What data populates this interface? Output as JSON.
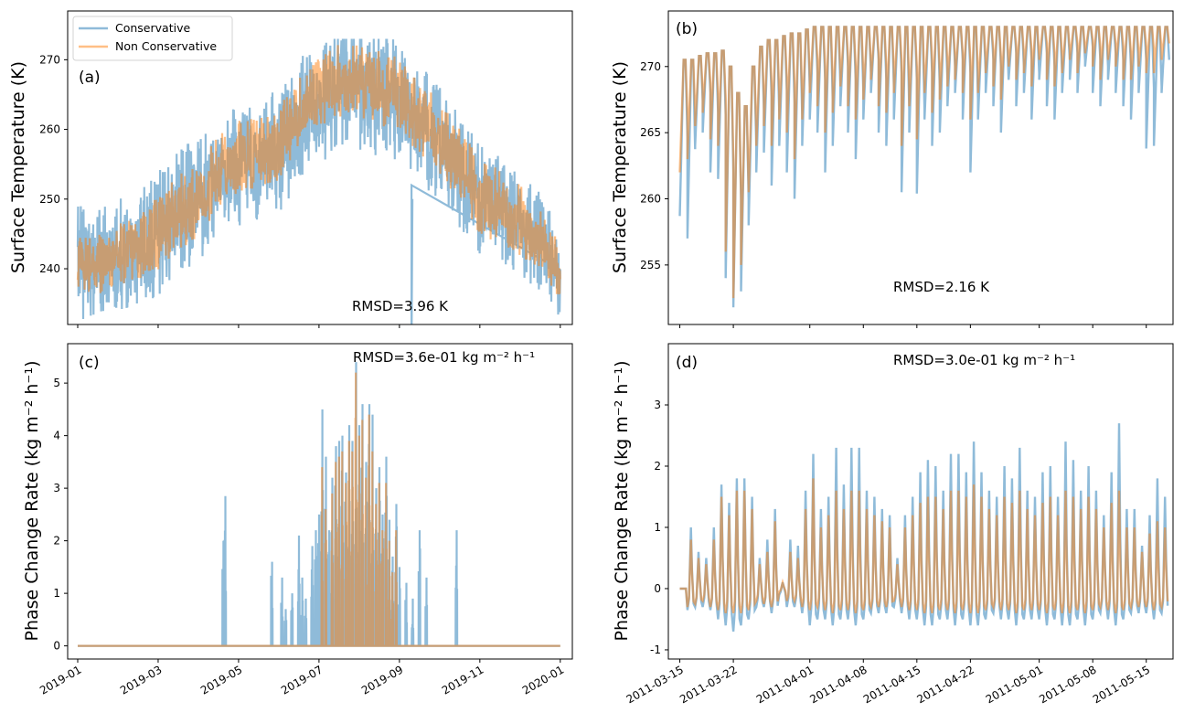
{
  "colors": {
    "conservative": "#1f77b4",
    "non_conservative": "#ff7f0e"
  },
  "chart_data": [
    {
      "type": "line",
      "panel_label": "(a)",
      "ylabel": "Surface Temperature (K)",
      "ylim": [
        232,
        277
      ],
      "yticks": [
        240,
        250,
        260,
        270
      ],
      "xtick_labels": [
        "2019-01",
        "2019-03",
        "2019-05",
        "2019-07",
        "2019-09",
        "2019-11",
        "2020-01"
      ],
      "xlim_months": [
        -0.25,
        12.3
      ],
      "annotation": "RMSD=3.96 K",
      "legend": [
        "Conservative",
        "Non Conservative"
      ],
      "series": [
        {
          "name": "Conservative",
          "x_months": [
            0,
            0.5,
            1,
            1.5,
            2,
            2.5,
            3,
            3.5,
            4,
            4.5,
            5,
            5.5,
            6,
            6.5,
            7,
            7.5,
            8,
            8.5,
            9,
            9.5,
            10,
            10.5,
            11,
            11.5,
            12
          ],
          "mean_K": [
            241,
            240.5,
            242,
            243,
            245,
            248,
            250,
            253,
            255,
            256,
            257,
            261,
            264,
            266,
            266,
            265,
            264,
            261,
            258,
            254,
            250,
            249,
            247,
            244,
            240
          ],
          "spread_K": [
            4.5,
            4.5,
            4.5,
            4.5,
            5,
            5,
            5,
            5,
            5,
            5,
            5,
            5,
            5,
            5,
            5,
            5,
            5,
            5,
            4.5,
            4.5,
            4.5,
            4.5,
            4.5,
            4,
            4
          ],
          "max_K": 273
        },
        {
          "name": "Non Conservative",
          "x_months": [
            0,
            0.5,
            1,
            1.5,
            2,
            2.5,
            3,
            3.5,
            4,
            4.5,
            5,
            5.5,
            6,
            6.5,
            7,
            7.5,
            8,
            8.5,
            9,
            9.5,
            10,
            10.5,
            11,
            11.5,
            12
          ],
          "mean_K": [
            241,
            240.5,
            242,
            243,
            245,
            248,
            250,
            254,
            256,
            257,
            258,
            262,
            265,
            267,
            267,
            266,
            265,
            262,
            259,
            255,
            250,
            249,
            247,
            244,
            240
          ],
          "spread_K": [
            2.5,
            2.5,
            2.5,
            2.5,
            3,
            3,
            3,
            3,
            3,
            3,
            3,
            3,
            3,
            3,
            3,
            3,
            3,
            3,
            3,
            3,
            3,
            3,
            3,
            2.5,
            2.5
          ],
          "max_K": 273
        }
      ]
    },
    {
      "type": "line",
      "panel_label": "(b)",
      "ylabel": "Surface Temperature (K)",
      "ylim": [
        250.5,
        274.2
      ],
      "yticks": [
        255,
        260,
        265,
        270
      ],
      "xtick_labels": [
        "2011-03-15",
        "2011-03-22",
        "2011-04-01",
        "2011-04-08",
        "2011-04-15",
        "2011-04-22",
        "2011-05-01",
        "2011-05-08",
        "2011-05-15"
      ],
      "xtick_days": [
        0,
        7,
        17,
        24,
        31,
        38,
        47,
        54,
        61
      ],
      "xlim_days": [
        -1.5,
        64.5
      ],
      "annotation": "RMSD=2.16 K",
      "series": [
        {
          "name": "Conservative",
          "daily_max_K": [
            270.5,
            270.5,
            270.8,
            271.0,
            271.0,
            271.2,
            270.0,
            268.0,
            267.0,
            270.0,
            271.5,
            272.0,
            272.0,
            272.3,
            272.5,
            272.5,
            272.8,
            273.0,
            273.0,
            273.0,
            273.0,
            273.0,
            273.0,
            273.0,
            273.0,
            273.0,
            273.0,
            273.0,
            273.0,
            273.0,
            273.0,
            273.0,
            273.0,
            273.0,
            273.0,
            273.0,
            273.0,
            273.0,
            273.0,
            273.0,
            273.0,
            273.0,
            273.0,
            273.0,
            273.0,
            273.0,
            273.0,
            273.0,
            273.0,
            273.0,
            273.0,
            273.0,
            273.0,
            273.0,
            273.0,
            273.0,
            273.0,
            273.0,
            273.0,
            273.0,
            273.0,
            273.0,
            273.0,
            273.0
          ],
          "daily_min_K": [
            258.7,
            257.0,
            264.0,
            265.0,
            262.0,
            261.5,
            254.0,
            251.8,
            253.0,
            258.0,
            262.0,
            263.5,
            261.0,
            264.0,
            262.0,
            260.0,
            264.0,
            266.0,
            265.0,
            262.0,
            264.0,
            267.0,
            265.0,
            263.0,
            266.0,
            268.0,
            265.0,
            264.0,
            266.0,
            260.5,
            265.0,
            260.4,
            266.0,
            264.0,
            265.0,
            267.0,
            268.0,
            266.0,
            262.0,
            266.0,
            268.0,
            267.0,
            265.0,
            269.0,
            267.0,
            268.0,
            266.0,
            269.0,
            267.0,
            266.0,
            268.0,
            269.0,
            268.0,
            270.0,
            268.0,
            267.0,
            269.0,
            268.0,
            267.0,
            266.0,
            268.0,
            263.8,
            264.0,
            268.0
          ]
        },
        {
          "name": "Non Conservative",
          "daily_max_K": [
            270.5,
            270.5,
            270.8,
            271.0,
            271.0,
            271.2,
            270.0,
            268.0,
            267.0,
            270.0,
            271.5,
            272.0,
            272.0,
            272.3,
            272.5,
            272.5,
            272.8,
            273.0,
            273.0,
            273.0,
            273.0,
            273.0,
            273.0,
            273.0,
            273.0,
            273.0,
            273.0,
            273.0,
            273.0,
            273.0,
            273.0,
            273.0,
            273.0,
            273.0,
            273.0,
            273.0,
            273.0,
            273.0,
            273.0,
            273.0,
            273.0,
            273.0,
            273.0,
            273.0,
            273.0,
            273.0,
            273.0,
            273.0,
            273.0,
            273.0,
            273.0,
            273.0,
            273.0,
            273.0,
            273.0,
            273.0,
            273.0,
            273.0,
            273.0,
            273.0,
            273.0,
            273.0,
            273.0,
            273.0
          ],
          "daily_min_K": [
            262.0,
            263.0,
            265.5,
            266.5,
            264.5,
            264.0,
            256.0,
            252.5,
            255.0,
            260.5,
            264.0,
            265.5,
            264.0,
            266.0,
            265.0,
            263.0,
            266.0,
            268.0,
            267.0,
            265.0,
            266.5,
            268.5,
            267.0,
            266.0,
            267.5,
            269.0,
            267.0,
            266.5,
            268.0,
            264.0,
            267.0,
            264.5,
            268.0,
            266.5,
            267.5,
            268.5,
            269.0,
            268.0,
            266.0,
            268.0,
            269.5,
            268.5,
            267.5,
            270.0,
            269.0,
            269.5,
            268.5,
            270.5,
            269.0,
            268.5,
            269.5,
            270.5,
            269.5,
            271.0,
            270.0,
            269.0,
            270.5,
            270.0,
            269.0,
            269.0,
            270.0,
            269.5,
            269.5,
            270.5
          ]
        }
      ]
    },
    {
      "type": "line",
      "panel_label": "(c)",
      "ylabel": "Phase Change Rate (kg m⁻² h⁻¹)",
      "ylim": [
        -0.25,
        5.75
      ],
      "yticks": [
        0,
        1,
        2,
        3,
        4,
        5
      ],
      "xtick_labels": [
        "2019-01",
        "2019-03",
        "2019-05",
        "2019-07",
        "2019-09",
        "2019-11",
        "2020-01"
      ],
      "xlim_months": [
        -0.25,
        12.3
      ],
      "annotation": "RMSD=3.6e-01 kg m⁻² h⁻¹",
      "series": [
        {
          "name": "Conservative",
          "spikes": [
            [
              3.62,
              2.0
            ],
            [
              3.67,
              2.85
            ],
            [
              4.83,
              1.6
            ],
            [
              5.08,
              1.3
            ],
            [
              5.17,
              0.7
            ],
            [
              5.33,
              1.0
            ],
            [
              5.5,
              2.1
            ],
            [
              5.58,
              1.3
            ],
            [
              5.67,
              0.9
            ],
            [
              5.83,
              1.9
            ],
            [
              5.92,
              2.2
            ],
            [
              6.0,
              2.5
            ],
            [
              6.08,
              4.5
            ],
            [
              6.17,
              3.6
            ],
            [
              6.25,
              2.2
            ],
            [
              6.33,
              3.2
            ],
            [
              6.42,
              3.8
            ],
            [
              6.5,
              3.9
            ],
            [
              6.58,
              4.0
            ],
            [
              6.67,
              3.3
            ],
            [
              6.75,
              4.2
            ],
            [
              6.83,
              3.9
            ],
            [
              6.92,
              5.4
            ],
            [
              7.0,
              4.2
            ],
            [
              7.08,
              4.6
            ],
            [
              7.17,
              3.5
            ],
            [
              7.25,
              4.6
            ],
            [
              7.33,
              4.4
            ],
            [
              7.42,
              3.0
            ],
            [
              7.5,
              3.4
            ],
            [
              7.58,
              2.5
            ],
            [
              7.67,
              3.6
            ],
            [
              7.75,
              2.4
            ],
            [
              7.83,
              1.7
            ],
            [
              7.92,
              2.7
            ],
            [
              8.0,
              1.5
            ],
            [
              8.17,
              1.2
            ],
            [
              8.33,
              0.9
            ],
            [
              8.5,
              2.2
            ],
            [
              8.67,
              1.3
            ],
            [
              9.42,
              2.2
            ]
          ]
        },
        {
          "name": "Non Conservative",
          "spikes": [
            [
              6.08,
              3.4
            ],
            [
              6.17,
              2.6
            ],
            [
              6.33,
              2.9
            ],
            [
              6.42,
              3.5
            ],
            [
              6.5,
              3.6
            ],
            [
              6.58,
              3.7
            ],
            [
              6.67,
              3.1
            ],
            [
              6.75,
              3.9
            ],
            [
              6.83,
              3.7
            ],
            [
              6.92,
              5.2
            ],
            [
              7.0,
              4.0
            ],
            [
              7.08,
              4.3
            ],
            [
              7.17,
              3.2
            ],
            [
              7.25,
              4.4
            ],
            [
              7.33,
              3.7
            ],
            [
              7.42,
              2.7
            ],
            [
              7.5,
              3.1
            ],
            [
              7.58,
              2.2
            ],
            [
              7.67,
              3.1
            ],
            [
              7.75,
              2.0
            ],
            [
              7.83,
              1.4
            ],
            [
              7.92,
              2.2
            ]
          ]
        }
      ]
    },
    {
      "type": "line",
      "panel_label": "(d)",
      "ylabel": "Phase Change Rate (kg m⁻² h⁻¹)",
      "ylim": [
        -1.15,
        4.0
      ],
      "yticks": [
        -1,
        0,
        1,
        2,
        3
      ],
      "xtick_labels": [
        "2011-03-15",
        "2011-03-22",
        "2011-04-01",
        "2011-04-08",
        "2011-04-15",
        "2011-04-22",
        "2011-05-01",
        "2011-05-08",
        "2011-05-15"
      ],
      "xtick_days": [
        0,
        7,
        17,
        24,
        31,
        38,
        47,
        54,
        61
      ],
      "xlim_days": [
        -1.5,
        64.5
      ],
      "annotation": "RMSD=3.0e-01 kg m⁻² h⁻¹",
      "series": [
        {
          "name": "Conservative",
          "daily_peak": [
            0.0,
            1.0,
            0.6,
            0.5,
            1.0,
            1.7,
            1.4,
            1.8,
            1.8,
            1.5,
            0.5,
            0.8,
            1.3,
            0.1,
            0.8,
            0.7,
            1.6,
            2.2,
            1.3,
            1.5,
            2.3,
            1.7,
            2.3,
            2.3,
            1.6,
            1.5,
            1.3,
            1.2,
            0.5,
            1.2,
            1.5,
            1.9,
            2.1,
            2.0,
            1.6,
            2.2,
            2.2,
            1.9,
            2.4,
            1.9,
            1.6,
            1.5,
            2.0,
            1.8,
            2.3,
            1.6,
            1.5,
            1.9,
            2.0,
            1.5,
            2.4,
            2.1,
            1.6,
            2.0,
            1.6,
            1.2,
            1.9,
            2.7,
            1.3,
            1.3,
            0.7,
            1.2,
            1.8,
            1.5
          ],
          "daily_trough": [
            0.0,
            -0.35,
            -0.3,
            -0.3,
            -0.35,
            -0.5,
            -0.6,
            -0.7,
            -0.6,
            -0.5,
            -0.3,
            -0.3,
            -0.4,
            -0.1,
            -0.3,
            -0.3,
            -0.4,
            -0.6,
            -0.5,
            -0.5,
            -0.6,
            -0.5,
            -0.5,
            -0.6,
            -0.5,
            -0.4,
            -0.4,
            -0.4,
            -0.3,
            -0.4,
            -0.5,
            -0.5,
            -0.6,
            -0.6,
            -0.5,
            -0.5,
            -0.6,
            -0.5,
            -0.6,
            -0.6,
            -0.5,
            -0.4,
            -0.5,
            -0.5,
            -0.6,
            -0.5,
            -0.5,
            -0.5,
            -0.6,
            -0.5,
            -0.6,
            -0.6,
            -0.5,
            -0.6,
            -0.5,
            -0.4,
            -0.5,
            -0.6,
            -0.5,
            -0.4,
            -0.4,
            -0.4,
            -0.5,
            -0.4
          ]
        },
        {
          "name": "Non Conservative",
          "daily_peak": [
            0.0,
            0.8,
            0.5,
            0.4,
            0.8,
            1.5,
            1.2,
            1.6,
            1.6,
            1.3,
            0.4,
            0.6,
            1.1,
            0.1,
            0.6,
            0.5,
            1.3,
            1.8,
            1.0,
            1.2,
            1.6,
            1.3,
            1.6,
            1.6,
            1.3,
            1.2,
            1.1,
            1.0,
            0.4,
            1.0,
            1.2,
            1.4,
            1.5,
            1.5,
            1.3,
            1.6,
            1.6,
            1.5,
            1.7,
            1.5,
            1.3,
            1.2,
            1.5,
            1.4,
            1.6,
            1.3,
            1.2,
            1.4,
            1.5,
            1.2,
            1.6,
            1.5,
            1.3,
            1.5,
            1.3,
            1.0,
            1.4,
            1.6,
            1.0,
            1.0,
            0.6,
            0.9,
            1.1,
            1.0
          ],
          "daily_trough": [
            0.0,
            -0.3,
            -0.25,
            -0.2,
            -0.3,
            -0.35,
            -0.4,
            -0.4,
            -0.4,
            -0.35,
            -0.2,
            -0.25,
            -0.3,
            -0.05,
            -0.2,
            -0.2,
            -0.3,
            -0.35,
            -0.3,
            -0.35,
            -0.4,
            -0.35,
            -0.35,
            -0.4,
            -0.35,
            -0.3,
            -0.3,
            -0.3,
            -0.2,
            -0.3,
            -0.35,
            -0.35,
            -0.4,
            -0.4,
            -0.35,
            -0.35,
            -0.4,
            -0.35,
            -0.4,
            -0.4,
            -0.35,
            -0.3,
            -0.35,
            -0.35,
            -0.4,
            -0.35,
            -0.35,
            -0.35,
            -0.4,
            -0.35,
            -0.4,
            -0.4,
            -0.35,
            -0.4,
            -0.35,
            -0.3,
            -0.35,
            -0.4,
            -0.35,
            -0.3,
            -0.3,
            -0.3,
            -0.35,
            -0.3
          ]
        }
      ]
    }
  ]
}
